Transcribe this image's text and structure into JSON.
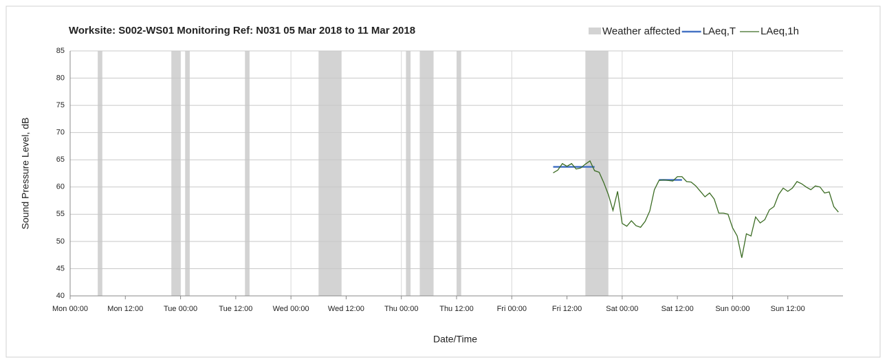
{
  "chart_data": {
    "type": "line",
    "title": "Worksite: S002-WS01    Monitoring Ref: N031     05 Mar 2018 to 11 Mar 2018",
    "x_label": "Date/Time",
    "y_label": "Sound Pressure Level, dB",
    "xlim": [
      0,
      168
    ],
    "xticks": [
      {
        "value": 0,
        "label": "Mon 00:00"
      },
      {
        "value": 12,
        "label": "Mon 12:00"
      },
      {
        "value": 24,
        "label": "Tue 00:00"
      },
      {
        "value": 36,
        "label": "Tue 12:00"
      },
      {
        "value": 48,
        "label": "Wed 00:00"
      },
      {
        "value": 60,
        "label": "Wed 12:00"
      },
      {
        "value": 72,
        "label": "Thu 00:00"
      },
      {
        "value": 84,
        "label": "Thu 12:00"
      },
      {
        "value": 96,
        "label": "Fri 00:00"
      },
      {
        "value": 108,
        "label": "Fri 12:00"
      },
      {
        "value": 120,
        "label": "Sat 00:00"
      },
      {
        "value": 132,
        "label": "Sat 12:00"
      },
      {
        "value": 144,
        "label": "Sun 00:00"
      },
      {
        "value": 156,
        "label": "Sun 12:00"
      }
    ],
    "ylim": [
      40,
      85
    ],
    "yticks": [
      40,
      45,
      50,
      55,
      60,
      65,
      70,
      75,
      80,
      85
    ],
    "grid": true,
    "shaded_regions": {
      "name": "Weather affected",
      "color": "#d3d3d3",
      "ranges": [
        [
          6,
          7
        ],
        [
          22,
          24
        ],
        [
          25,
          26
        ],
        [
          38,
          39
        ],
        [
          54,
          59
        ],
        [
          73,
          74
        ],
        [
          76,
          79
        ],
        [
          84,
          85
        ],
        [
          112,
          117
        ]
      ]
    },
    "series": [
      {
        "name": "LAeq,T",
        "color": "#4472c4",
        "width": 2.5,
        "x": [
          105,
          114,
          121,
          128,
          133
        ],
        "values": [
          63.7,
          63.7,
          null,
          61.3,
          61.3
        ]
      },
      {
        "name": "LAeq,1h",
        "color": "#3a6b22",
        "width": 1.3,
        "x": [
          105,
          106,
          107,
          108,
          109,
          110,
          111,
          112,
          113,
          114,
          115,
          116,
          117,
          118,
          119,
          120,
          121,
          122,
          123,
          124,
          125,
          126,
          127,
          128,
          129,
          130,
          131,
          132,
          133,
          134,
          135,
          136,
          137,
          138,
          139,
          140,
          141,
          142,
          143,
          144,
          145,
          146,
          147,
          148,
          149,
          150,
          151,
          152,
          153,
          154,
          155,
          156,
          157,
          158,
          159,
          160,
          161,
          162,
          163,
          164,
          165,
          166,
          167
        ],
        "values": [
          62.6,
          63.1,
          64.3,
          63.8,
          64.3,
          63.3,
          63.5,
          64.2,
          64.8,
          63.0,
          62.7,
          60.8,
          58.6,
          55.7,
          59.2,
          53.3,
          52.8,
          53.8,
          52.9,
          52.6,
          53.7,
          55.6,
          59.5,
          61.2,
          61.3,
          61.2,
          61.1,
          61.9,
          61.9,
          61.0,
          60.9,
          60.2,
          59.2,
          58.2,
          58.9,
          57.8,
          55.2,
          55.2,
          55.0,
          52.5,
          51.0,
          47.0,
          51.4,
          51.0,
          54.5,
          53.4,
          54.0,
          55.8,
          56.4,
          58.6,
          59.8,
          59.2,
          59.8,
          61.0,
          60.6,
          60.0,
          59.5,
          60.2,
          60.0,
          58.9,
          59.1,
          56.4,
          55.4
        ]
      }
    ]
  }
}
